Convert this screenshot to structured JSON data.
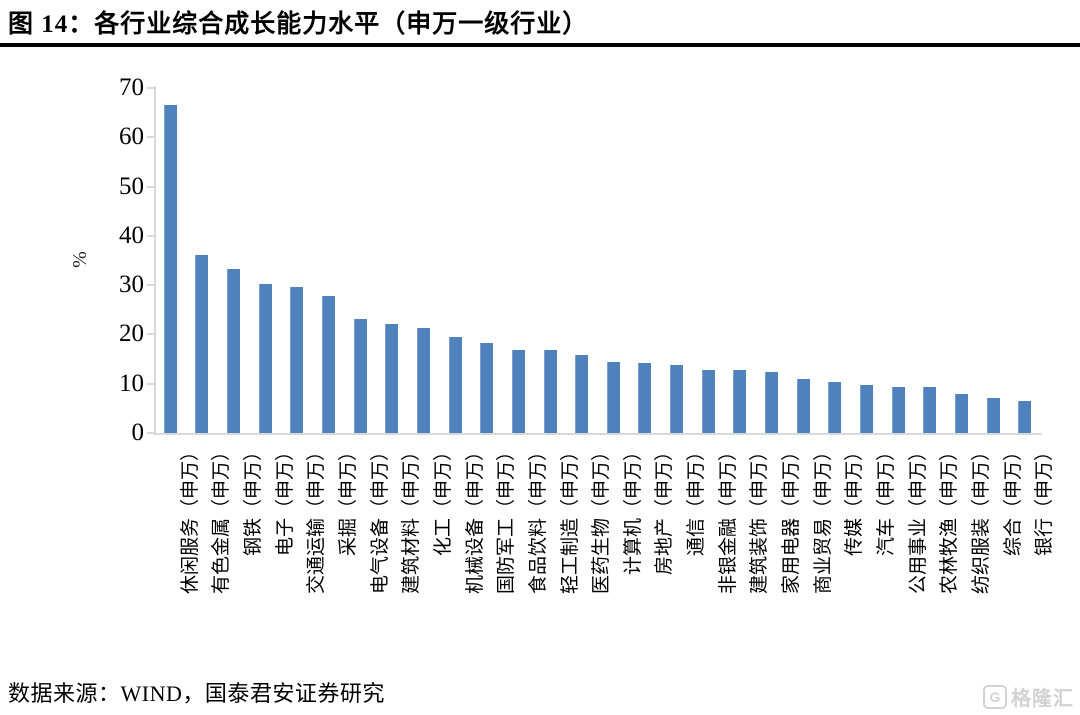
{
  "figure": {
    "title": "图 14：各行业综合成长能力水平（申万一级行业）",
    "source": "数据来源：WIND，国泰君安证券研究"
  },
  "watermark": {
    "icon": "gelonghui-logo-icon",
    "brand": "格隆汇"
  },
  "chart_data": {
    "type": "bar",
    "title": "各行业综合成长能力水平（申万一级行业）",
    "xlabel": "",
    "ylabel": "%",
    "ylim": [
      0,
      70
    ],
    "yticks": [
      0,
      10,
      20,
      30,
      40,
      50,
      60,
      70
    ],
    "grid": false,
    "legend": "none",
    "bar_color": "#4f81bd",
    "axis_color": "#d9d9d9",
    "categories": [
      "休闲服务（申万）",
      "有色金属（申万）",
      "钢铁（申万）",
      "电子（申万）",
      "交通运输（申万）",
      "采掘（申万）",
      "电气设备（申万）",
      "建筑材料（申万）",
      "化工（申万）",
      "机械设备（申万）",
      "国防军工（申万）",
      "食品饮料（申万）",
      "轻工制造（申万）",
      "医药生物（申万）",
      "计算机（申万）",
      "房地产（申万）",
      "通信（申万）",
      "非银金融（申万）",
      "建筑装饰（申万）",
      "家用电器（申万）",
      "商业贸易（申万）",
      "传媒（申万）",
      "汽车（申万）",
      "公用事业（申万）",
      "农林牧渔（申万）",
      "纺织服装（申万）",
      "综合（申万）",
      "银行（申万）"
    ],
    "values": [
      66.5,
      36.1,
      33.2,
      30.3,
      29.7,
      27.7,
      23.2,
      22.2,
      21.3,
      19.4,
      18.3,
      16.9,
      16.8,
      15.9,
      14.4,
      14.3,
      13.8,
      12.8,
      12.7,
      12.3,
      10.9,
      10.4,
      9.8,
      9.4,
      9.3,
      7.9,
      7.2,
      6.4
    ]
  }
}
